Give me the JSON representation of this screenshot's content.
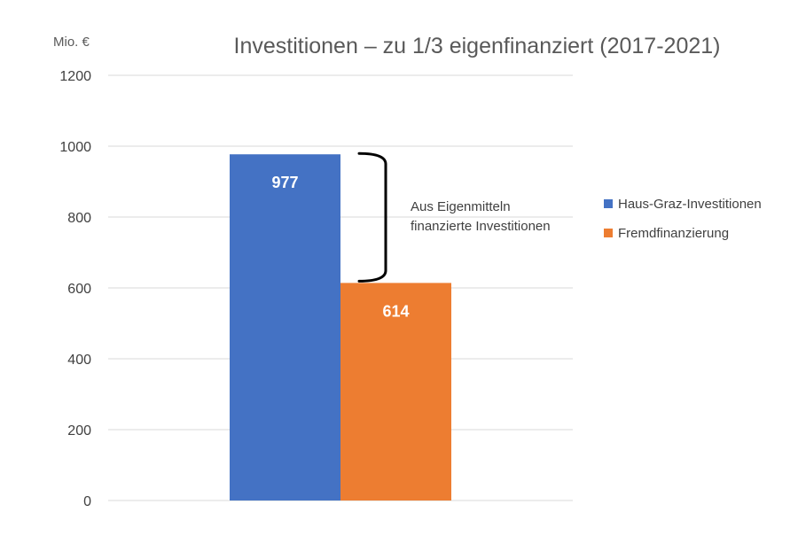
{
  "chart_data": {
    "type": "bar",
    "title": "Investitionen – zu 1/3 eigenfinanziert (2017-2021)",
    "ylabel": "Mio. €",
    "ylim": [
      0,
      1200
    ],
    "yticks": [
      0,
      200,
      400,
      600,
      800,
      1000,
      1200
    ],
    "grid": true,
    "legend_position": "right",
    "series": [
      {
        "name": "Haus-Graz-Investitionen",
        "values": [
          977
        ],
        "label": "977",
        "color": "#4472C4"
      },
      {
        "name": "Fremdfinanzierung",
        "values": [
          614
        ],
        "label": "614",
        "color": "#ED7D31"
      }
    ],
    "annotation": {
      "lines": [
        "Aus Eigenmitteln",
        "finanzierte Investitionen"
      ],
      "from_value": 614,
      "to_value": 977
    }
  }
}
